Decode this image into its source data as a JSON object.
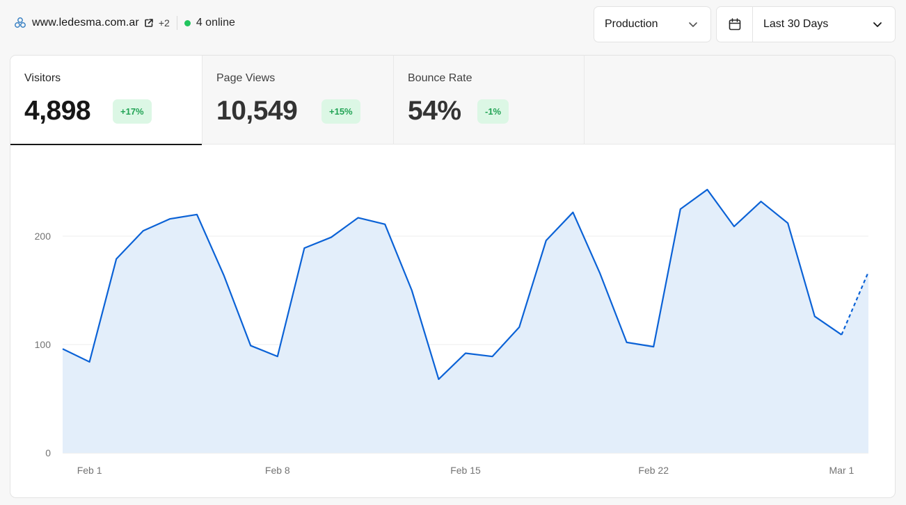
{
  "header": {
    "site_name": "www.ledesma.com.ar",
    "extra_sites": "+2",
    "online": "4 online",
    "environment": "Production",
    "date_range": "Last 30 Days"
  },
  "colors": {
    "accent": "#0b62d6",
    "fill": "#e3eefa",
    "online": "#22c55e",
    "badge_bg": "#dcf7e5",
    "badge_text": "#22a355"
  },
  "tabs": [
    {
      "label": "Visitors",
      "value": "4,898",
      "change": "+17%",
      "active": true
    },
    {
      "label": "Page Views",
      "value": "10,549",
      "change": "+15%",
      "active": false
    },
    {
      "label": "Bounce Rate",
      "value": "54%",
      "change": "-1%",
      "active": false
    }
  ],
  "chart_data": {
    "type": "area",
    "title": "",
    "xlabel": "",
    "ylabel": "",
    "ylim": [
      0,
      240
    ],
    "yticks": [
      0,
      100,
      200
    ],
    "grid": true,
    "xticks": [
      {
        "label": "Feb 1",
        "x": "Feb 1"
      },
      {
        "label": "Feb 8",
        "x": "Feb 8"
      },
      {
        "label": "Feb 15",
        "x": "Feb 15"
      },
      {
        "label": "Feb 22",
        "x": "Feb 22"
      },
      {
        "label": "Mar 1",
        "x": "Mar 1"
      }
    ],
    "x": [
      "Jan 31",
      "Feb 1",
      "Feb 2",
      "Feb 3",
      "Feb 4",
      "Feb 5",
      "Feb 6",
      "Feb 7",
      "Feb 8",
      "Feb 9",
      "Feb 10",
      "Feb 11",
      "Feb 12",
      "Feb 13",
      "Feb 14",
      "Feb 15",
      "Feb 16",
      "Feb 17",
      "Feb 18",
      "Feb 19",
      "Feb 20",
      "Feb 21",
      "Feb 22",
      "Feb 23",
      "Feb 24",
      "Feb 25",
      "Feb 26",
      "Feb 27",
      "Feb 28",
      "Mar 1",
      "Mar 2"
    ],
    "series": [
      {
        "values": [
          96,
          84,
          179,
          205,
          216,
          220,
          164,
          99,
          89,
          189,
          199,
          217,
          211,
          150,
          68,
          92,
          89,
          116,
          196,
          222,
          166,
          102,
          98,
          225,
          243,
          209,
          232,
          212,
          126,
          109,
          167
        ],
        "dashed_from_index": 29
      }
    ]
  }
}
